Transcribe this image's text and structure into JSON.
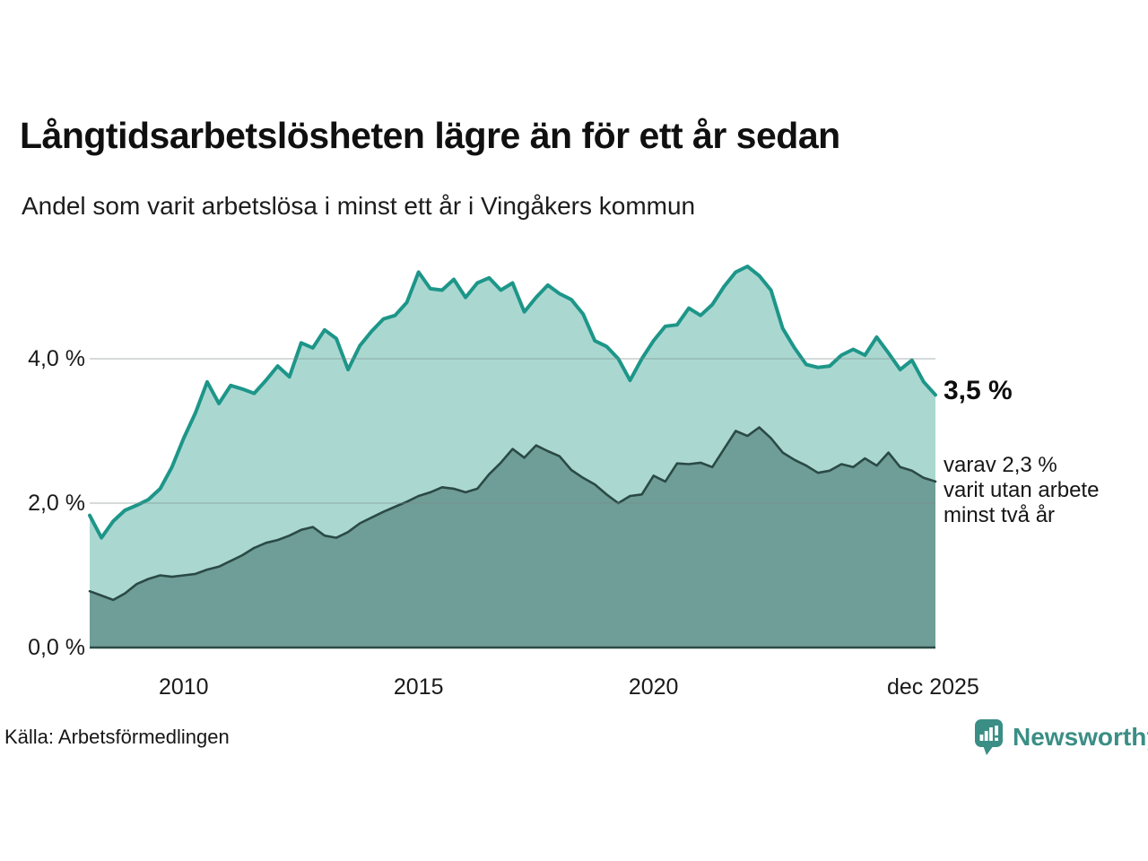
{
  "header": {
    "title": "Långtidsarbetslösheten lägre än för ett år sedan",
    "subtitle": "Andel som varit arbetslösa i minst ett år i Vingåkers kommun"
  },
  "annotations": {
    "latest_value": "3,5 %",
    "secondary_lines": [
      "varav 2,3 %",
      "varit utan arbete",
      "minst två år"
    ]
  },
  "footer": {
    "source": "Källa: Arbetsförmedlingen",
    "logo_text": "Newsworthy"
  },
  "colors": {
    "series1_line": "#1d9689",
    "series1_fill": "#aad8d1",
    "series2_line": "#2b4a45",
    "series2_fill": "#6f9d98",
    "grid": "#7d8a87",
    "baseline": "#2b4a45",
    "logo_teal": "#3a8e85"
  },
  "chart_data": {
    "type": "area",
    "title": "Långtidsarbetslösheten lägre än för ett år sedan",
    "subtitle": "Andel som varit arbetslösa i minst ett år i Vingåkers kommun",
    "unit": "%",
    "xlabel": "",
    "ylabel": "",
    "x_start": 2008.0,
    "x_end": 2026.0,
    "x_step_years": 0.25,
    "ylim": [
      0,
      5.5
    ],
    "grid": "horizontal",
    "legend": "none",
    "x_ticks": [
      {
        "label": "2010",
        "year": 2010
      },
      {
        "label": "2015",
        "year": 2015
      },
      {
        "label": "2020",
        "year": 2020
      },
      {
        "label": "dec 2025",
        "year": 2025.95
      }
    ],
    "y_ticks": [
      {
        "label": "0,0 %",
        "value": 0
      },
      {
        "label": "2,0 %",
        "value": 2
      },
      {
        "label": "4,0 %",
        "value": 4
      }
    ],
    "series": [
      {
        "name": "Andel arbetslösa minst ett år",
        "end_value": 3.5,
        "values": [
          1.83,
          1.52,
          1.75,
          1.9,
          1.97,
          2.05,
          2.2,
          2.5,
          2.9,
          3.25,
          3.68,
          3.38,
          3.63,
          3.58,
          3.52,
          3.7,
          3.9,
          3.75,
          4.22,
          4.15,
          4.4,
          4.28,
          3.85,
          4.18,
          4.38,
          4.55,
          4.6,
          4.78,
          5.2,
          4.97,
          4.95,
          5.1,
          4.85,
          5.05,
          5.12,
          4.95,
          5.05,
          4.65,
          4.85,
          5.02,
          4.9,
          4.82,
          4.62,
          4.25,
          4.17,
          4.0,
          3.7,
          4.0,
          4.25,
          4.45,
          4.47,
          4.7,
          4.6,
          4.75,
          5.0,
          5.2,
          5.28,
          5.15,
          4.95,
          4.42,
          4.15,
          3.92,
          3.88,
          3.9,
          4.05,
          4.13,
          4.05,
          4.3,
          4.08,
          3.85,
          3.98,
          3.68,
          3.5
        ]
      },
      {
        "name": "varav utan arbete minst två år",
        "end_value": 2.3,
        "values": [
          0.78,
          0.72,
          0.66,
          0.75,
          0.88,
          0.95,
          1.0,
          0.98,
          1.0,
          1.02,
          1.08,
          1.12,
          1.2,
          1.28,
          1.38,
          1.45,
          1.49,
          1.55,
          1.63,
          1.67,
          1.55,
          1.52,
          1.6,
          1.72,
          1.8,
          1.88,
          1.95,
          2.02,
          2.1,
          2.15,
          2.22,
          2.2,
          2.15,
          2.2,
          2.4,
          2.56,
          2.75,
          2.63,
          2.8,
          2.72,
          2.65,
          2.46,
          2.35,
          2.26,
          2.12,
          2.0,
          2.1,
          2.12,
          2.38,
          2.3,
          2.55,
          2.54,
          2.56,
          2.5,
          2.75,
          3.0,
          2.93,
          3.05,
          2.9,
          2.7,
          2.6,
          2.52,
          2.42,
          2.45,
          2.54,
          2.5,
          2.62,
          2.52,
          2.7,
          2.5,
          2.45,
          2.35,
          2.3
        ]
      }
    ]
  }
}
